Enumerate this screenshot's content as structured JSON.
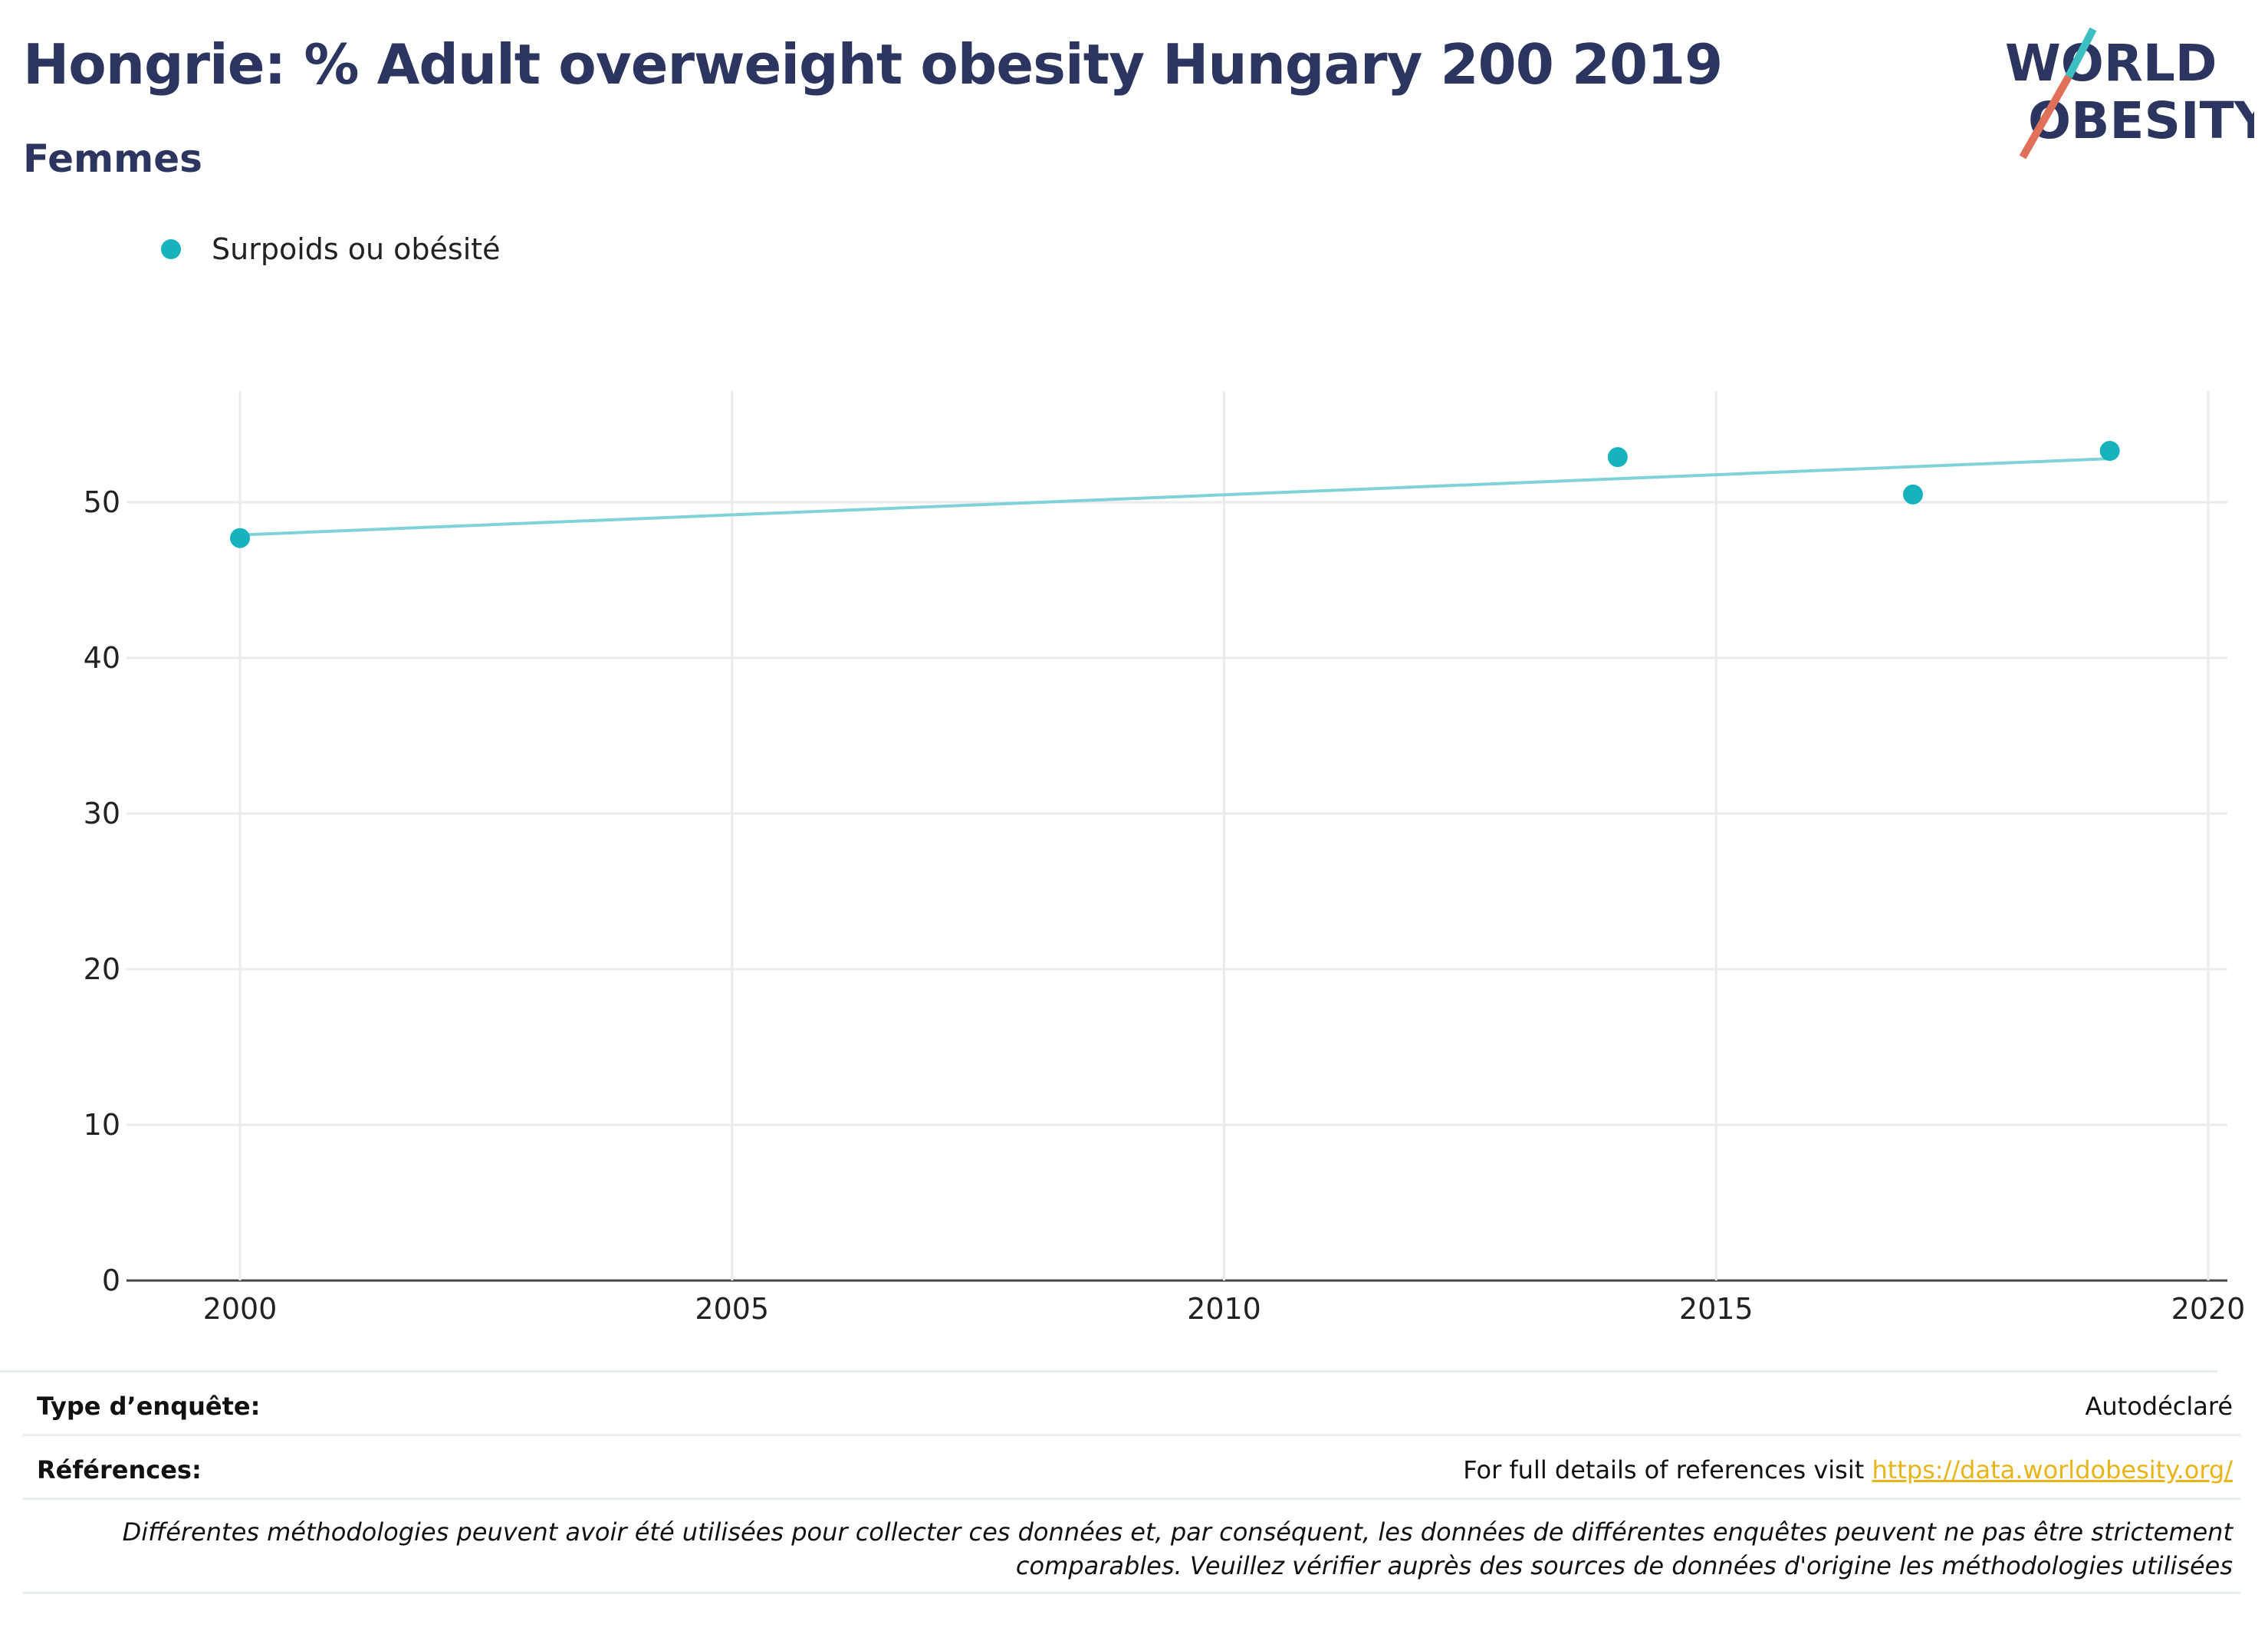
{
  "header": {
    "title": "Hongrie: % Adult overweight obesity Hungary 200 2019",
    "subtitle": "Femmes"
  },
  "logo": {
    "line1": "WORLD",
    "line2": "OBESITY"
  },
  "legend": {
    "label": "Surpoids ou obésité",
    "color": "#17b3bd"
  },
  "chart_data": {
    "type": "scatter",
    "x": [
      2000,
      2014,
      2017,
      2019
    ],
    "series": [
      {
        "name": "Surpoids ou obésité",
        "values": [
          47.7,
          52.9,
          50.5,
          53.3
        ],
        "color": "#17b3bd"
      }
    ],
    "trendline": {
      "x": [
        2000,
        2019
      ],
      "values": [
        47.9,
        52.8
      ],
      "color": "#7fd3d8"
    },
    "xlim": [
      1999,
      2020.3
    ],
    "ylim": [
      0,
      57
    ],
    "xticks": [
      2000,
      2005,
      2010,
      2015,
      2020
    ],
    "yticks": [
      0,
      10,
      20,
      30,
      40,
      50
    ],
    "grid": true
  },
  "footer": {
    "survey_label": "Type d’enquête:",
    "survey_value": "Autodéclaré",
    "refs_label": "Références:",
    "refs_text": "For full details of references visit ",
    "refs_link": "https://data.worldobesity.org/",
    "note_line1": "Différentes méthodologies peuvent avoir été utilisées pour collecter ces données et, par conséquent, les données de différentes enquêtes peuvent ne pas être strictement",
    "note_line2": "comparables. Veuillez vérifier auprès des sources de données d'origine les méthodologies utilisées"
  }
}
